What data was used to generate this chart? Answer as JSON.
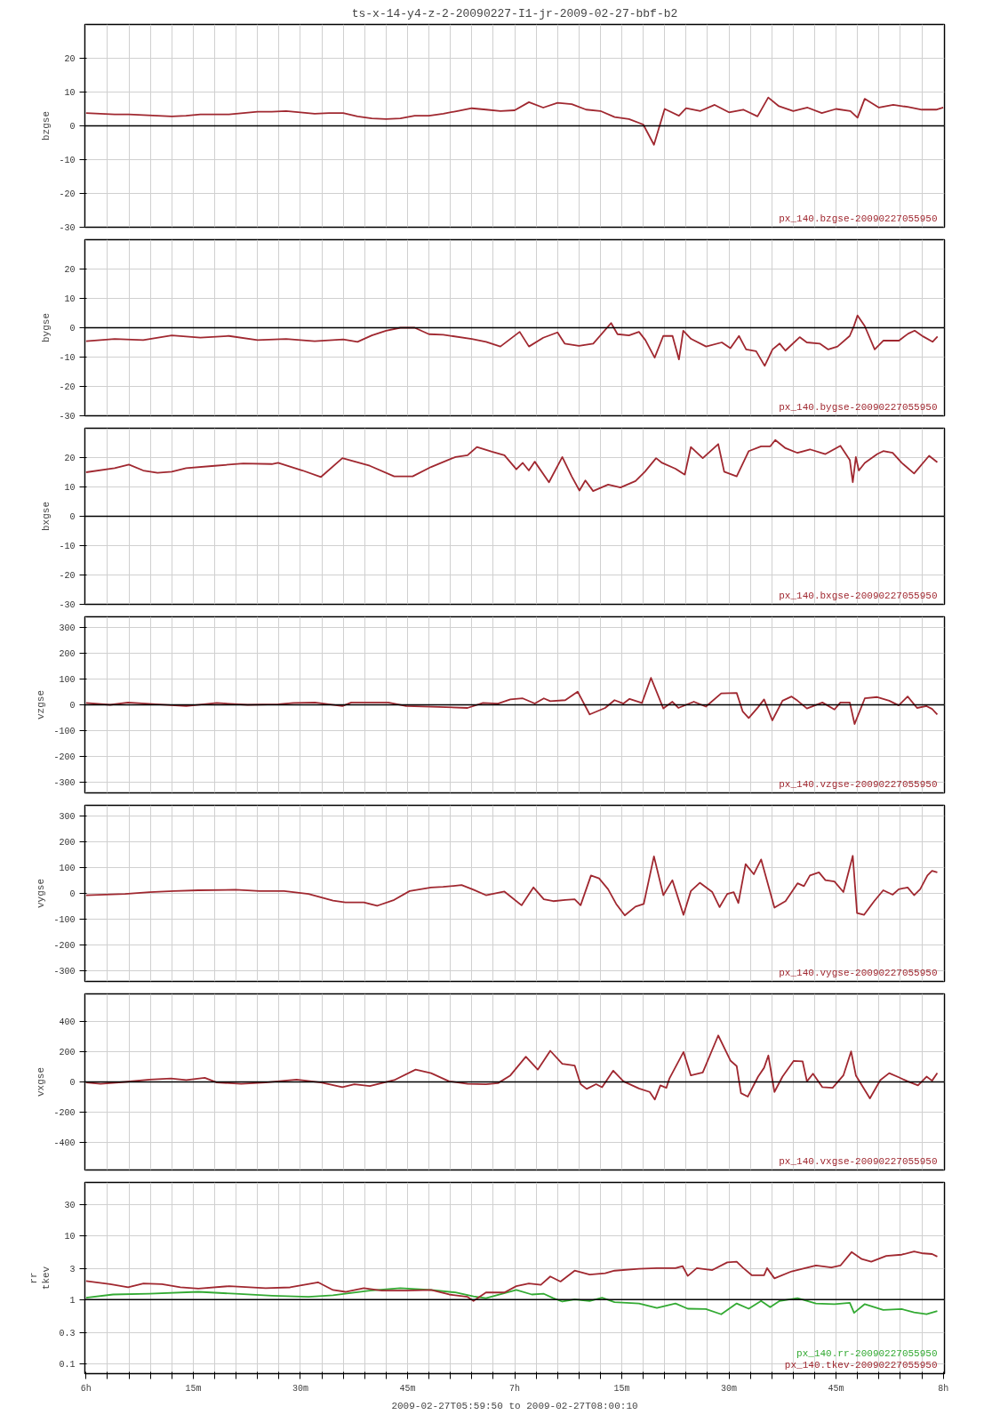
{
  "chart_data": [
    {
      "type": "line",
      "title": "ts-x-14-y4-z-2-20090227-I1-jr-2009-02-27-bbf-b2",
      "ylabel": "bzgse",
      "tick_labels": "y",
      "grid": true,
      "xlim": [
        "2009-02-27T05:59:50",
        "2009-02-27T08:00:10"
      ],
      "ylim": [
        -30,
        30
      ],
      "yticks": [
        -30,
        -20,
        -10,
        0,
        10,
        20
      ],
      "ref_lines": [
        {
          "axis": "y",
          "value": 0
        }
      ],
      "series": [
        {
          "name": "px_140.bzgse-20090227055950",
          "color": "#a02830",
          "x": [
            "2009-02-27T06:00",
            "2009-02-27T06:02",
            "2009-02-27T06:04",
            "2009-02-27T06:06",
            "2009-02-27T06:08",
            "2009-02-27T06:10",
            "2009-02-27T06:12",
            "2009-02-27T06:14",
            "2009-02-27T06:16",
            "2009-02-27T06:18",
            "2009-02-27T06:20",
            "2009-02-27T06:22",
            "2009-02-27T06:24",
            "2009-02-27T06:26",
            "2009-02-27T06:28",
            "2009-02-27T06:30",
            "2009-02-27T06:32",
            "2009-02-27T06:34",
            "2009-02-27T06:36",
            "2009-02-27T06:38",
            "2009-02-27T06:40",
            "2009-02-27T06:42",
            "2009-02-27T06:44",
            "2009-02-27T06:46",
            "2009-02-27T06:48",
            "2009-02-27T06:50",
            "2009-02-27T06:52",
            "2009-02-27T06:54",
            "2009-02-27T06:56",
            "2009-02-27T06:58",
            "2009-02-27T07:00",
            "2009-02-27T07:02",
            "2009-02-27T07:04",
            "2009-02-27T07:06",
            "2009-02-27T07:08",
            "2009-02-27T07:10",
            "2009-02-27T07:12",
            "2009-02-27T07:14",
            "2009-02-27T07:16",
            "2009-02-27T07:18",
            "2009-02-27T07:19:30",
            "2009-02-27T07:21",
            "2009-02-27T07:23",
            "2009-02-27T07:24",
            "2009-02-27T07:26",
            "2009-02-27T07:28",
            "2009-02-27T07:30",
            "2009-02-27T07:32",
            "2009-02-27T07:34",
            "2009-02-27T07:35:30",
            "2009-02-27T07:37",
            "2009-02-27T07:39",
            "2009-02-27T07:41",
            "2009-02-27T07:43",
            "2009-02-27T07:45",
            "2009-02-27T07:47",
            "2009-02-27T07:48",
            "2009-02-27T07:49",
            "2009-02-27T07:51",
            "2009-02-27T07:53",
            "2009-02-27T07:55",
            "2009-02-27T07:57",
            "2009-02-27T07:59",
            "2009-02-27T08:00"
          ],
          "values": [
            3.8,
            3.6,
            3.4,
            3.4,
            3.2,
            3.0,
            2.8,
            3.0,
            3.4,
            3.4,
            3.4,
            3.8,
            4.2,
            4.2,
            4.4,
            4.0,
            3.6,
            3.8,
            3.8,
            2.8,
            2.2,
            2.0,
            2.2,
            3.0,
            3.0,
            3.6,
            4.4,
            5.2,
            4.8,
            4.4,
            4.6,
            7.0,
            5.4,
            6.8,
            6.4,
            4.8,
            4.4,
            2.6,
            2.0,
            0.4,
            -5.6,
            5.0,
            3.0,
            5.2,
            4.4,
            6.2,
            4.0,
            4.8,
            2.8,
            8.4,
            5.8,
            4.4,
            5.4,
            3.8,
            5.0,
            4.4,
            2.4,
            8.0,
            5.4,
            6.2,
            5.6,
            4.8,
            4.8,
            5.4
          ]
        }
      ]
    },
    {
      "type": "line",
      "ylabel": "bygse",
      "tick_labels": "y",
      "grid": true,
      "xlim": [
        "2009-02-27T05:59:50",
        "2009-02-27T08:00:10"
      ],
      "ylim": [
        -30,
        30
      ],
      "yticks": [
        -30,
        -20,
        -10,
        0,
        10,
        20
      ],
      "ref_lines": [
        {
          "axis": "y",
          "value": 0
        }
      ],
      "series": [
        {
          "name": "px_140.bygse-20090227055950",
          "color": "#a02830",
          "x": [
            "2009-02-27T06:00",
            "2009-02-27T06:04",
            "2009-02-27T06:08",
            "2009-02-27T06:12",
            "2009-02-27T06:16",
            "2009-02-27T06:20",
            "2009-02-27T06:24",
            "2009-02-27T06:28",
            "2009-02-27T06:32",
            "2009-02-27T06:36",
            "2009-02-27T06:38",
            "2009-02-27T06:40",
            "2009-02-27T06:42",
            "2009-02-27T06:44",
            "2009-02-27T06:46",
            "2009-02-27T06:48",
            "2009-02-27T06:50",
            "2009-02-27T06:54",
            "2009-02-27T06:56",
            "2009-02-27T06:58",
            "2009-02-27T07:00:42",
            "2009-02-27T07:02",
            "2009-02-27T07:04",
            "2009-02-27T07:06",
            "2009-02-27T07:07",
            "2009-02-27T07:09",
            "2009-02-27T07:11",
            "2009-02-27T07:13:30",
            "2009-02-27T07:14:24",
            "2009-02-27T07:16",
            "2009-02-27T07:17:24",
            "2009-02-27T07:18:18",
            "2009-02-27T07:19:36",
            "2009-02-27T07:20:48",
            "2009-02-27T07:22:06",
            "2009-02-27T07:23",
            "2009-02-27T07:23:36",
            "2009-02-27T07:24:42",
            "2009-02-27T07:26:48",
            "2009-02-27T07:29",
            "2009-02-27T07:30:12",
            "2009-02-27T07:31:24",
            "2009-02-27T07:32:24",
            "2009-02-27T07:33:48",
            "2009-02-27T07:35",
            "2009-02-27T07:36:06",
            "2009-02-27T07:37:06",
            "2009-02-27T07:37:54",
            "2009-02-27T07:39:54",
            "2009-02-27T07:40:54",
            "2009-02-27T07:42:42",
            "2009-02-27T07:43:54",
            "2009-02-27T07:45:12",
            "2009-02-27T07:46:54",
            "2009-02-27T07:47:30",
            "2009-02-27T07:48",
            "2009-02-27T07:49",
            "2009-02-27T07:50:24",
            "2009-02-27T07:51:36",
            "2009-02-27T07:53:48",
            "2009-02-27T07:55:06",
            "2009-02-27T07:56",
            "2009-02-27T07:57:12",
            "2009-02-27T07:58:30",
            "2009-02-27T07:59:12"
          ],
          "values": [
            -4.6,
            -3.8,
            -4.2,
            -2.6,
            -3.4,
            -2.8,
            -4.2,
            -3.8,
            -4.6,
            -4.0,
            -4.8,
            -2.6,
            -1.0,
            0,
            0,
            -2.2,
            -2.4,
            -3.8,
            -4.8,
            -6.4,
            -1.4,
            -6.4,
            -3.4,
            -1.6,
            -5.4,
            -6.2,
            -5.4,
            1.6,
            -2.2,
            -2.6,
            -1.4,
            -4.2,
            -10.2,
            -2.8,
            -2.8,
            -10.8,
            -1.0,
            -3.8,
            -6.4,
            -5.0,
            -7.0,
            -2.8,
            -7.4,
            -8.0,
            -13.0,
            -7.4,
            -5.4,
            -7.8,
            -3.2,
            -5.0,
            -5.4,
            -7.4,
            -6.4,
            -2.8,
            0.6,
            4.2,
            0.6,
            -7.4,
            -4.4,
            -4.4,
            -2.0,
            -1.0,
            -3.0,
            -4.8,
            -3.0
          ]
        }
      ]
    },
    {
      "type": "line",
      "ylabel": "bxgse",
      "tick_labels": "y",
      "grid": true,
      "xlim": [
        "2009-02-27T05:59:50",
        "2009-02-27T08:00:10"
      ],
      "ylim": [
        -30,
        30
      ],
      "yticks": [
        -30,
        -20,
        -10,
        0,
        10,
        20
      ],
      "ref_lines": [
        {
          "axis": "y",
          "value": 0
        }
      ],
      "series": [
        {
          "name": "px_140.bxgse-20090227055950",
          "color": "#a02830",
          "x": [
            "2009-02-27T06:00",
            "2009-02-27T06:04",
            "2009-02-27T06:06",
            "2009-02-27T06:08",
            "2009-02-27T06:10",
            "2009-02-27T06:12",
            "2009-02-27T06:14",
            "2009-02-27T06:18",
            "2009-02-27T06:22",
            "2009-02-27T06:26",
            "2009-02-27T06:26:53",
            "2009-02-27T06:30:18",
            "2009-02-27T06:32:53",
            "2009-02-27T06:35:53",
            "2009-02-27T06:39:43",
            "2009-02-27T06:43:08",
            "2009-02-27T06:45:43",
            "2009-02-27T06:48:18",
            "2009-02-27T06:51:43",
            "2009-02-27T06:53:24",
            "2009-02-27T06:54:43",
            "2009-02-27T06:56:49",
            "2009-02-27T06:58:34",
            "2009-02-27T07:00:14",
            "2009-02-27T07:01:08",
            "2009-02-27T07:01:59",
            "2009-02-27T07:02:49",
            "2009-02-27T07:04:48",
            "2009-02-27T07:06:40",
            "2009-02-27T07:07:59",
            "2009-02-27T07:09:04",
            "2009-02-27T07:09:54",
            "2009-02-27T07:10:59",
            "2009-02-27T07:13:05",
            "2009-02-27T07:14:49",
            "2009-02-27T07:16:55",
            "2009-02-27T07:18:14",
            "2009-02-27T07:19:48",
            "2009-02-27T07:20:38",
            "2009-02-27T07:22:30",
            "2009-02-27T07:23:49",
            "2009-02-27T07:24:40",
            "2009-02-27T07:26:20",
            "2009-02-27T07:28:30",
            "2009-02-27T07:29:20",
            "2009-02-27T07:31:05",
            "2009-02-27T07:32:46",
            "2009-02-27T07:34:30",
            "2009-02-27T07:35:46",
            "2009-02-27T07:36:29",
            "2009-02-27T07:37:55",
            "2009-02-27T07:39:36",
            "2009-02-27T07:41:20",
            "2009-02-27T07:43:30",
            "2009-02-27T07:45:36",
            "2009-02-27T07:46:55",
            "2009-02-27T07:47:20",
            "2009-02-27T07:47:46",
            "2009-02-27T07:48:11",
            "2009-02-27T07:49:01",
            "2009-02-27T07:50:46",
            "2009-02-27T07:51:36",
            "2009-02-27T07:52:55",
            "2009-02-27T07:54:11",
            "2009-02-27T07:55:55",
            "2009-02-27T07:58:01",
            "2009-02-27T07:59:10"
          ],
          "values": [
            15.0,
            16.4,
            17.6,
            15.6,
            14.8,
            15.2,
            16.4,
            17.2,
            18.0,
            17.8,
            18.2,
            15.6,
            13.4,
            19.8,
            17.2,
            13.6,
            13.6,
            16.8,
            20.2,
            20.8,
            23.6,
            22.0,
            20.8,
            16.0,
            18.2,
            15.6,
            18.6,
            11.6,
            20.2,
            13.6,
            8.8,
            12.2,
            8.6,
            10.8,
            9.8,
            12.0,
            15.2,
            19.8,
            18.2,
            16.2,
            14.2,
            23.6,
            19.8,
            24.6,
            15.2,
            13.6,
            22.2,
            23.8,
            23.8,
            26.0,
            23.2,
            21.6,
            22.8,
            21.2,
            24.0,
            19.2,
            11.6,
            20.2,
            15.6,
            18.2,
            21.2,
            22.2,
            21.6,
            18.2,
            14.6,
            20.6,
            18.4
          ]
        }
      ]
    },
    {
      "type": "line",
      "ylabel": "vzgse",
      "tick_labels": "y",
      "grid": true,
      "xlim": [
        "2009-02-27T05:59:50",
        "2009-02-27T08:00:10"
      ],
      "ylim": [
        -340,
        340
      ],
      "yticks": [
        -300,
        -200,
        -100,
        0,
        100,
        200,
        300
      ],
      "ref_lines": [
        {
          "axis": "y",
          "value": 0
        }
      ],
      "series": [
        {
          "name": "px_140.vzgse-20090227055950",
          "color": "#a02830",
          "x": [
            "2009-02-27T06:00",
            "2009-02-27T06:03:22",
            "2009-02-27T06:05:53",
            "2009-02-27T06:09:47",
            "2009-02-27T06:14:02",
            "2009-02-27T06:18:18",
            "2009-02-27T06:22:37",
            "2009-02-27T06:26:53",
            "2009-02-27T06:29:02",
            "2009-02-27T06:32:02",
            "2009-02-27T06:35:53",
            "2009-02-27T06:37:08",
            "2009-02-27T06:42:18",
            "2009-02-27T06:44:49",
            "2009-02-27T06:48:18",
            "2009-02-27T06:53:24",
            "2009-02-27T06:55:34",
            "2009-02-27T06:57:40",
            "2009-02-27T06:59:24",
            "2009-02-27T07:01:08",
            "2009-02-27T07:02:49",
            "2009-02-27T07:04:05",
            "2009-02-27T07:04:59",
            "2009-02-27T07:07:05",
            "2009-02-27T07:08:49",
            "2009-02-27T07:10:30",
            "2009-02-27T07:12:40",
            "2009-02-27T07:13:59",
            "2009-02-27T07:15:14",
            "2009-02-27T07:16:05",
            "2009-02-27T07:17:49",
            "2009-02-27T07:19:05",
            "2009-02-27T07:20:49",
            "2009-02-27T07:22:05",
            "2009-02-27T07:22:55",
            "2009-02-27T07:25:05",
            "2009-02-27T07:26:46",
            "2009-02-27T07:28:55",
            "2009-02-27T07:31:05",
            "2009-02-27T07:31:55",
            "2009-02-27T07:32:46",
            "2009-02-27T07:34:05",
            "2009-02-27T07:34:55",
            "2009-02-27T07:36:04",
            "2009-02-27T07:37:30",
            "2009-02-27T07:38:46",
            "2009-02-27T07:39:36",
            "2009-02-27T07:40:55",
            "2009-02-27T07:43:05",
            "2009-02-27T07:44:46",
            "2009-02-27T07:45:36",
            "2009-02-27T07:46:55",
            "2009-02-27T07:47:35",
            "2009-02-27T07:49:01",
            "2009-02-27T07:50:46",
            "2009-02-27T07:52:26",
            "2009-02-27T07:53:46",
            "2009-02-27T07:55:01",
            "2009-02-27T07:56:20",
            "2009-02-27T07:57:40",
            "2009-02-27T07:58:26",
            "2009-02-27T07:59:10"
          ],
          "values": [
            7,
            0,
            9,
            2,
            -5,
            7,
            0,
            2,
            7,
            9,
            -5,
            9,
            9,
            -5,
            -7,
            -12,
            7,
            5,
            21,
            25,
            5,
            25,
            14,
            18,
            51,
            -37,
            -12,
            18,
            5,
            23,
            7,
            104,
            -14,
            12,
            -12,
            12,
            -7,
            44,
            46,
            -25,
            -51,
            -9,
            21,
            -60,
            16,
            32,
            16,
            -14,
            9,
            -18,
            9,
            9,
            -74,
            25,
            30,
            16,
            -2,
            32,
            -12,
            -5,
            -16,
            -37
          ]
        }
      ]
    },
    {
      "type": "line",
      "ylabel": "vygse",
      "tick_labels": "y",
      "grid": true,
      "xlim": [
        "2009-02-27T05:59:50",
        "2009-02-27T08:00:10"
      ],
      "ylim": [
        -340,
        340
      ],
      "yticks": [
        -300,
        -200,
        -100,
        0,
        100,
        200,
        300
      ],
      "series": [
        {
          "name": "px_140.vygse-20090227055950",
          "color": "#a02830",
          "x": [
            "2009-02-27T06:00",
            "2009-02-27T06:05:28",
            "2009-02-27T06:08:53",
            "2009-02-27T06:12:18",
            "2009-02-27T06:15:43",
            "2009-02-27T06:20:53",
            "2009-02-27T06:24:18",
            "2009-02-27T06:27:43",
            "2009-02-27T06:31:08",
            "2009-02-27T06:34:34",
            "2009-02-27T06:36:18",
            "2009-02-27T06:38:53",
            "2009-02-27T06:40:44",
            "2009-02-27T06:43:08",
            "2009-02-27T06:45:18",
            "2009-02-27T06:48:18",
            "2009-02-27T06:49:59",
            "2009-02-27T06:52:34",
            "2009-02-27T06:54:14",
            "2009-02-27T06:55:59",
            "2009-02-27T06:58:34",
            "2009-02-27T07:00:58",
            "2009-02-27T07:02:38",
            "2009-02-27T07:04:05",
            "2009-02-27T07:05:24",
            "2009-02-27T07:07:05",
            "2009-02-27T07:08:24",
            "2009-02-27T07:09:14",
            "2009-02-27T07:10:41",
            "2009-02-27T07:11:49",
            "2009-02-27T07:13:05",
            "2009-02-27T07:14:13",
            "2009-02-27T07:15:25",
            "2009-02-27T07:16:55",
            "2009-02-27T07:18:04",
            "2009-02-27T07:19:30",
            "2009-02-27T07:20:49",
            "2009-02-27T07:22:05",
            "2009-02-27T07:23:38",
            "2009-02-27T07:24:40",
            "2009-02-27T07:25:55",
            "2009-02-27T07:27:40",
            "2009-02-27T07:28:41",
            "2009-02-27T07:29:46",
            "2009-02-27T07:30:40",
            "2009-02-27T07:31:19",
            "2009-02-27T07:32:20",
            "2009-02-27T07:33:29",
            "2009-02-27T07:34:30",
            "2009-02-27T07:36:22",
            "2009-02-27T07:37:55",
            "2009-02-27T07:39:36",
            "2009-02-27T07:40:30",
            "2009-02-27T07:41:20",
            "2009-02-27T07:42:36",
            "2009-02-27T07:43:30",
            "2009-02-27T07:44:46",
            "2009-02-27T07:46:01",
            "2009-02-27T07:47:20",
            "2009-02-27T07:47:56",
            "2009-02-27T07:48:54",
            "2009-02-27T07:50:20",
            "2009-02-27T07:51:36",
            "2009-02-27T07:52:55",
            "2009-02-27T07:53:46",
            "2009-02-27T07:55:01",
            "2009-02-27T07:55:55",
            "2009-02-27T07:56:46",
            "2009-02-27T07:57:47",
            "2009-02-27T07:58:26",
            "2009-02-27T07:59:10"
          ],
          "values": [
            -7,
            -2,
            5,
            9,
            12,
            14,
            9,
            9,
            -2,
            -28,
            -35,
            -35,
            -48,
            -25,
            9,
            23,
            25,
            32,
            14,
            -7,
            7,
            -46,
            23,
            -23,
            -30,
            -25,
            -23,
            -46,
            69,
            58,
            16,
            -41,
            -85,
            -51,
            -41,
            143,
            -7,
            51,
            -83,
            9,
            41,
            5,
            -53,
            -2,
            5,
            -37,
            113,
            74,
            131,
            -55,
            -30,
            39,
            28,
            69,
            81,
            51,
            46,
            5,
            145,
            -76,
            -83,
            -30,
            12,
            -5,
            16,
            23,
            -7,
            16,
            69,
            87,
            81
          ]
        }
      ]
    },
    {
      "type": "line",
      "ylabel": "vxgse",
      "tick_labels": "y",
      "grid": true,
      "xlim": [
        "2009-02-27T05:59:50",
        "2009-02-27T08:00:10"
      ],
      "ylim": [
        -580,
        580
      ],
      "yticks": [
        -400,
        -200,
        0,
        200,
        400
      ],
      "ref_lines": [
        {
          "axis": "y",
          "value": 0
        }
      ],
      "series": [
        {
          "name": "px_140.vxgse-20090227055950",
          "color": "#a02830",
          "x": [
            "2009-02-27T06:00",
            "2009-02-27T06:02:02",
            "2009-02-27T06:05:28",
            "2009-02-27T06:08:53",
            "2009-02-27T06:11:53",
            "2009-02-27T06:14:02",
            "2009-02-27T06:16:37",
            "2009-02-27T06:18:18",
            "2009-02-27T06:21:43",
            "2009-02-27T06:25:08",
            "2009-02-27T06:29:28",
            "2009-02-27T06:32:53",
            "2009-02-27T06:35:53",
            "2009-02-27T06:37:34",
            "2009-02-27T06:39:43",
            "2009-02-27T06:43:08",
            "2009-02-27T06:46:08",
            "2009-02-27T06:48:18",
            "2009-02-27T06:50:50",
            "2009-02-27T06:53:24",
            "2009-02-27T06:55:59",
            "2009-02-27T06:57:40",
            "2009-02-27T06:59:24",
            "2009-02-27T07:01:34",
            "2009-02-27T07:03:14",
            "2009-02-27T07:04:59",
            "2009-02-27T07:06:40",
            "2009-02-27T07:08:24",
            "2009-02-27T07:09:14",
            "2009-02-27T07:10:05",
            "2009-02-27T07:11:24",
            "2009-02-27T07:12:14",
            "2009-02-27T07:13:48",
            "2009-02-27T07:15:14",
            "2009-02-27T07:17:24",
            "2009-02-27T07:18:54",
            "2009-02-27T07:19:37",
            "2009-02-27T07:20:24",
            "2009-02-27T07:21:14",
            "2009-02-27T07:21:40",
            "2009-02-27T07:23:38",
            "2009-02-27T07:24:40",
            "2009-02-27T07:26:20",
            "2009-02-27T07:28:30",
            "2009-02-27T07:30:14",
            "2009-02-27T07:31:05",
            "2009-02-27T07:31:41",
            "2009-02-27T07:32:38",
            "2009-02-27T07:34:05",
            "2009-02-27T07:34:55",
            "2009-02-27T07:35:31",
            "2009-02-27T07:36:22",
            "2009-02-27T07:37:30",
            "2009-02-27T07:39:04",
            "2009-02-27T07:40:19",
            "2009-02-27T07:40:55",
            "2009-02-27T07:41:46",
            "2009-02-27T07:43:05",
            "2009-02-27T07:44:31",
            "2009-02-27T07:46:01",
            "2009-02-27T07:47:06",
            "2009-02-27T07:47:46",
            "2009-02-27T07:49:44",
            "2009-02-27T07:51:11",
            "2009-02-27T07:52:26",
            "2009-02-27T07:53:46",
            "2009-02-27T07:55:01",
            "2009-02-27T07:56:28",
            "2009-02-27T07:57:40",
            "2009-02-27T07:58:26",
            "2009-02-27T07:59:10"
          ],
          "values": [
            -4,
            -12,
            0,
            15,
            23,
            12,
            27,
            -4,
            -12,
            -4,
            15,
            -4,
            -35,
            -15,
            -27,
            12,
            81,
            58,
            4,
            -12,
            -15,
            -8,
            43,
            166,
            81,
            205,
            120,
            108,
            -15,
            -46,
            -15,
            -35,
            74,
            4,
            -43,
            -66,
            -116,
            -23,
            -39,
            23,
            197,
            43,
            62,
            306,
            139,
            104,
            -74,
            -97,
            35,
            93,
            174,
            -66,
            35,
            139,
            135,
            4,
            54,
            -35,
            -39,
            43,
            201,
            43,
            -108,
            12,
            58,
            31,
            4,
            -23,
            35,
            8,
            58
          ]
        }
      ]
    },
    {
      "type": "line",
      "ylabel": "rr\ntkev",
      "xlabel": "2009-02-27T05:59:50 to 2009-02-27T08:00:10",
      "grid": true,
      "log": "y",
      "xlim": [
        "2009-02-27T05:59:50",
        "2009-02-27T08:00:10"
      ],
      "ylim": [
        0.07,
        67
      ],
      "yticks": [
        0.1,
        0.3,
        1,
        3,
        10,
        30
      ],
      "xticks": [
        {
          "value": "2009-02-27T06:00",
          "label": "6h"
        },
        {
          "value": "2009-02-27T06:03",
          "label": null
        },
        {
          "value": "2009-02-27T06:06",
          "label": null
        },
        {
          "value": "2009-02-27T06:09",
          "label": null
        },
        {
          "value": "2009-02-27T06:12",
          "label": null
        },
        {
          "value": "2009-02-27T06:15",
          "label": "15m"
        },
        {
          "value": "2009-02-27T06:18",
          "label": null
        },
        {
          "value": "2009-02-27T06:21",
          "label": null
        },
        {
          "value": "2009-02-27T06:24",
          "label": null
        },
        {
          "value": "2009-02-27T06:27",
          "label": null
        },
        {
          "value": "2009-02-27T06:30",
          "label": "30m"
        },
        {
          "value": "2009-02-27T06:33",
          "label": null
        },
        {
          "value": "2009-02-27T06:36",
          "label": null
        },
        {
          "value": "2009-02-27T06:39",
          "label": null
        },
        {
          "value": "2009-02-27T06:42",
          "label": null
        },
        {
          "value": "2009-02-27T06:45",
          "label": "45m"
        },
        {
          "value": "2009-02-27T06:48",
          "label": null
        },
        {
          "value": "2009-02-27T06:51",
          "label": null
        },
        {
          "value": "2009-02-27T06:54",
          "label": null
        },
        {
          "value": "2009-02-27T06:57",
          "label": null
        },
        {
          "value": "2009-02-27T07:00",
          "label": "7h"
        },
        {
          "value": "2009-02-27T07:03",
          "label": null
        },
        {
          "value": "2009-02-27T07:06",
          "label": null
        },
        {
          "value": "2009-02-27T07:09",
          "label": null
        },
        {
          "value": "2009-02-27T07:12",
          "label": null
        },
        {
          "value": "2009-02-27T07:15",
          "label": "15m"
        },
        {
          "value": "2009-02-27T07:18",
          "label": null
        },
        {
          "value": "2009-02-27T07:21",
          "label": null
        },
        {
          "value": "2009-02-27T07:24",
          "label": null
        },
        {
          "value": "2009-02-27T07:27",
          "label": null
        },
        {
          "value": "2009-02-27T07:30",
          "label": "30m"
        },
        {
          "value": "2009-02-27T07:33",
          "label": null
        },
        {
          "value": "2009-02-27T07:36",
          "label": null
        },
        {
          "value": "2009-02-27T07:39",
          "label": null
        },
        {
          "value": "2009-02-27T07:42",
          "label": null
        },
        {
          "value": "2009-02-27T07:45",
          "label": "45m"
        },
        {
          "value": "2009-02-27T07:48",
          "label": null
        },
        {
          "value": "2009-02-27T07:51",
          "label": null
        },
        {
          "value": "2009-02-27T07:54",
          "label": null
        },
        {
          "value": "2009-02-27T07:57",
          "label": null
        },
        {
          "value": "2009-02-27T08:00",
          "label": "8h"
        }
      ],
      "ref_lines": [
        {
          "axis": "y",
          "value": 1
        }
      ],
      "series": [
        {
          "name": "px_140.rr-20090227055950",
          "color": "#33aa33",
          "x": [
            "2009-02-27T06:00",
            "2009-02-27T06:03:47",
            "2009-02-27T06:08:53",
            "2009-02-27T06:15:43",
            "2009-02-27T06:20:53",
            "2009-02-27T06:26:02",
            "2009-02-27T06:31:08",
            "2009-02-27T06:34:34",
            "2009-02-27T06:39:43",
            "2009-02-27T06:43:59",
            "2009-02-27T06:48:18",
            "2009-02-27T06:51:43",
            "2009-02-27T06:54:14",
            "2009-02-27T06:55:59",
            "2009-02-27T07:00:14",
            "2009-02-27T07:02:24",
            "2009-02-27T07:04:05",
            "2009-02-27T07:05:24",
            "2009-02-27T07:06:40",
            "2009-02-27T07:08:24",
            "2009-02-27T07:10:30",
            "2009-02-27T07:12:14",
            "2009-02-27T07:13:59",
            "2009-02-27T07:17:24",
            "2009-02-27T07:19:55",
            "2009-02-27T07:22:30",
            "2009-02-27T07:24:14",
            "2009-02-27T07:26:46",
            "2009-02-27T07:28:55",
            "2009-02-27T07:31:05",
            "2009-02-27T07:32:46",
            "2009-02-27T07:34:30",
            "2009-02-27T07:35:46",
            "2009-02-27T07:37:05",
            "2009-02-27T07:39:36",
            "2009-02-27T07:42:11",
            "2009-02-27T07:44:46",
            "2009-02-27T07:46:55",
            "2009-02-27T07:47:31",
            "2009-02-27T07:49:01",
            "2009-02-27T07:51:36",
            "2009-02-27T07:54:11",
            "2009-02-27T07:55:55",
            "2009-02-27T07:57:40",
            "2009-02-27T07:59:10"
          ],
          "values": [
            1.07,
            1.2,
            1.23,
            1.32,
            1.23,
            1.15,
            1.1,
            1.17,
            1.38,
            1.51,
            1.41,
            1.29,
            1.12,
            1.05,
            1.41,
            1.2,
            1.23,
            1.05,
            0.93,
            1.0,
            0.95,
            1.07,
            0.91,
            0.87,
            0.74,
            0.87,
            0.72,
            0.71,
            0.59,
            0.87,
            0.72,
            0.95,
            0.76,
            0.95,
            1.05,
            0.87,
            0.85,
            0.89,
            0.62,
            0.85,
            0.69,
            0.71,
            0.63,
            0.59,
            0.66
          ]
        },
        {
          "name": "px_140.tkev-20090227055950",
          "color": "#a02830",
          "x": [
            "2009-02-27T06:00",
            "2009-02-27T06:03:22",
            "2009-02-27T06:05:53",
            "2009-02-27T06:08:02",
            "2009-02-27T06:10:37",
            "2009-02-27T06:13:12",
            "2009-02-27T06:15:43",
            "2009-02-27T06:20:02",
            "2009-02-27T06:25:08",
            "2009-02-27T06:28:34",
            "2009-02-27T06:32:28",
            "2009-02-27T06:34:34",
            "2009-02-27T06:36:18",
            "2009-02-27T06:38:53",
            "2009-02-27T06:41:24",
            "2009-02-27T06:44:49",
            "2009-02-27T06:48:18",
            "2009-02-27T06:50:50",
            "2009-02-27T06:53:24",
            "2009-02-27T06:54:14",
            "2009-02-27T06:55:59",
            "2009-02-27T06:58:34",
            "2009-02-27T07:00:14",
            "2009-02-27T07:01:59",
            "2009-02-27T07:03:40",
            "2009-02-27T07:04:59",
            "2009-02-27T07:06:25",
            "2009-02-27T07:08:24",
            "2009-02-27T07:10:30",
            "2009-02-27T07:12:40",
            "2009-02-27T07:13:59",
            "2009-02-27T07:17:24",
            "2009-02-27T07:19:55",
            "2009-02-27T07:22:30",
            "2009-02-27T07:23:31",
            "2009-02-27T07:24:14",
            "2009-02-27T07:25:30",
            "2009-02-27T07:27:40",
            "2009-02-27T07:29:46",
            "2009-02-27T07:31:05",
            "2009-02-27T07:31:55",
            "2009-02-27T07:33:11",
            "2009-02-27T07:34:55",
            "2009-02-27T07:35:20",
            "2009-02-27T07:36:22",
            "2009-02-27T07:38:46",
            "2009-02-27T07:42:11",
            "2009-02-27T07:44:20",
            "2009-02-27T07:45:36",
            "2009-02-27T07:47:10",
            "2009-02-27T07:48:36",
            "2009-02-27T07:49:55",
            "2009-02-27T07:52:01",
            "2009-02-27T07:54:11",
            "2009-02-27T07:55:55",
            "2009-02-27T07:57:11",
            "2009-02-27T07:58:26",
            "2009-02-27T07:59:10"
          ],
          "values": [
            1.95,
            1.74,
            1.55,
            1.78,
            1.74,
            1.55,
            1.48,
            1.62,
            1.51,
            1.55,
            1.86,
            1.41,
            1.32,
            1.51,
            1.38,
            1.38,
            1.41,
            1.2,
            1.1,
            0.95,
            1.29,
            1.29,
            1.62,
            1.78,
            1.7,
            2.29,
            1.91,
            2.82,
            2.45,
            2.57,
            2.82,
            3.02,
            3.09,
            3.09,
            3.31,
            2.34,
            3.09,
            2.88,
            3.8,
            3.89,
            3.16,
            2.4,
            2.4,
            3.09,
            2.14,
            2.75,
            3.39,
            3.16,
            3.39,
            5.5,
            4.27,
            3.89,
            4.79,
            5.01,
            5.62,
            5.25,
            5.13,
            4.68
          ]
        }
      ]
    }
  ]
}
